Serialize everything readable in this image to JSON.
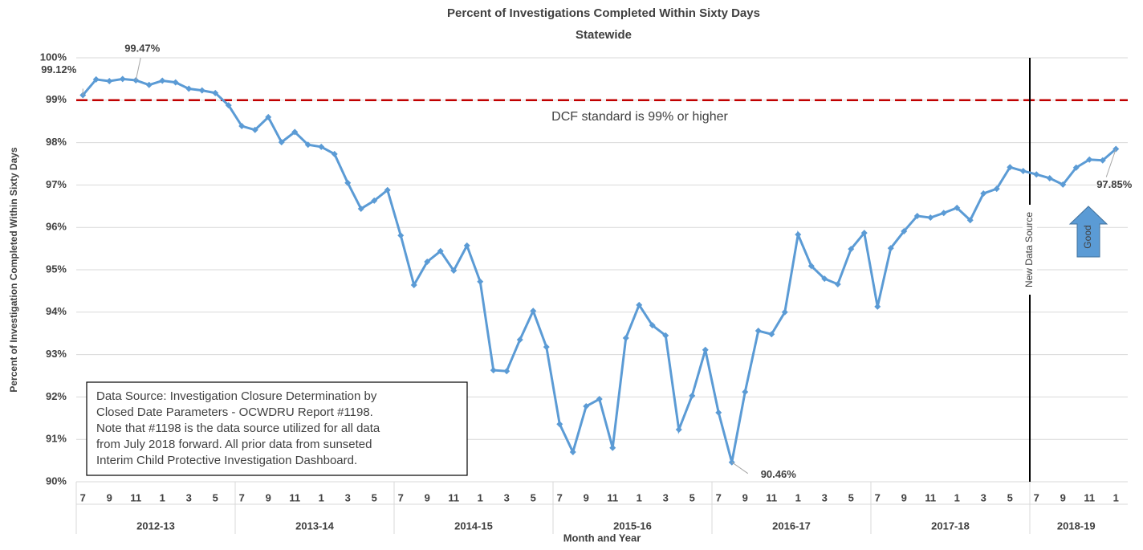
{
  "chart_data": {
    "type": "line",
    "title": "Percent of Investigations Completed Within Sixty Days",
    "subtitle": "Statewide",
    "y_label": "Percent of Investigation Completed Within Sixty Days",
    "x_label": "Month and Year",
    "categories": [
      "7",
      null,
      "9",
      null,
      "11",
      null,
      "1",
      null,
      "3",
      null,
      "5",
      null,
      "7",
      null,
      "9",
      null,
      "11",
      null,
      "1",
      null,
      "3",
      null,
      "5",
      null,
      "7",
      null,
      "9",
      null,
      "11",
      null,
      "1",
      null,
      "3",
      null,
      "5",
      null,
      "7",
      null,
      "9",
      null,
      "11",
      null,
      "1",
      null,
      "3",
      null,
      "5",
      null,
      "7",
      null,
      "9",
      null,
      "11",
      null,
      "1",
      null,
      "3",
      null,
      "5",
      null,
      "7",
      null,
      "9",
      null,
      "11",
      null,
      "1",
      null,
      "3",
      null,
      "5",
      null,
      "7",
      null,
      "9",
      null,
      "11",
      null,
      "1"
    ],
    "category_groups": [
      "2012-13",
      "2013-14",
      "2014-15",
      "2015-16",
      "2016-17",
      "2017-18",
      "2018-19"
    ],
    "series": [
      {
        "name": "Statewide",
        "color": "#5b9bd5",
        "values": [
          99.12,
          99.49,
          99.45,
          99.5,
          99.47,
          99.36,
          99.46,
          99.42,
          99.27,
          99.23,
          99.17,
          98.88,
          98.39,
          98.3,
          98.6,
          98.01,
          98.25,
          97.95,
          97.9,
          97.73,
          97.05,
          96.44,
          96.63,
          96.88,
          95.81,
          94.64,
          95.19,
          95.44,
          94.98,
          95.57,
          94.72,
          92.63,
          92.61,
          93.35,
          94.03,
          93.18,
          91.36,
          90.7,
          91.78,
          91.95,
          90.8,
          93.39,
          94.17,
          93.69,
          93.45,
          91.23,
          92.03,
          93.11,
          91.63,
          90.46,
          92.12,
          93.56,
          93.48,
          94.0,
          95.83,
          95.09,
          94.79,
          94.66,
          95.49,
          95.87,
          94.13,
          95.51,
          95.91,
          96.27,
          96.23,
          96.34,
          96.46,
          96.17,
          96.8,
          96.91,
          97.42,
          97.33,
          97.25,
          97.16,
          97.01,
          97.41,
          97.6,
          97.58,
          97.85
        ],
        "value_labels": [
          "99.12%",
          null,
          null,
          null,
          "99.47%",
          null,
          null,
          null,
          null,
          null,
          null,
          null,
          null,
          null,
          null,
          null,
          null,
          null,
          null,
          null,
          null,
          null,
          null,
          null,
          null,
          null,
          null,
          null,
          null,
          null,
          null,
          null,
          null,
          null,
          null,
          null,
          null,
          null,
          null,
          null,
          null,
          null,
          null,
          null,
          null,
          null,
          null,
          null,
          null,
          "90.46%",
          null,
          null,
          null,
          null,
          null,
          null,
          null,
          null,
          null,
          null,
          null,
          null,
          null,
          null,
          null,
          null,
          null,
          null,
          null,
          null,
          null,
          null,
          null,
          null,
          null,
          null,
          null,
          null,
          "97.85%"
        ]
      }
    ],
    "ylim": [
      90,
      100
    ],
    "yticks": [
      {
        "value": 90,
        "label": "90%"
      },
      {
        "value": 91,
        "label": "91%"
      },
      {
        "value": 92,
        "label": "92%"
      },
      {
        "value": 93,
        "label": "93%"
      },
      {
        "value": 94,
        "label": "94%"
      },
      {
        "value": 95,
        "label": "95%"
      },
      {
        "value": 96,
        "label": "96%"
      },
      {
        "value": 97,
        "label": "97%"
      },
      {
        "value": 98,
        "label": "98%"
      },
      {
        "value": 99,
        "label": "99%"
      },
      {
        "value": 100,
        "label": "100%"
      }
    ],
    "grid": true,
    "reference_line": {
      "value": 99,
      "color": "#c00000",
      "label": "DCF standard is 99% or higher"
    },
    "vline_label": "New Data Source",
    "arrow_label": "Good",
    "note": [
      "Data Source: Investigation Closure Determination by",
      "Closed Date Parameters - OCWDRU Report #1198.",
      "Note that #1198 is the data source utilized for all data",
      "from July 2018 forward.  All prior data from sunseted",
      "Interim Child Protective Investigation Dashboard."
    ]
  }
}
